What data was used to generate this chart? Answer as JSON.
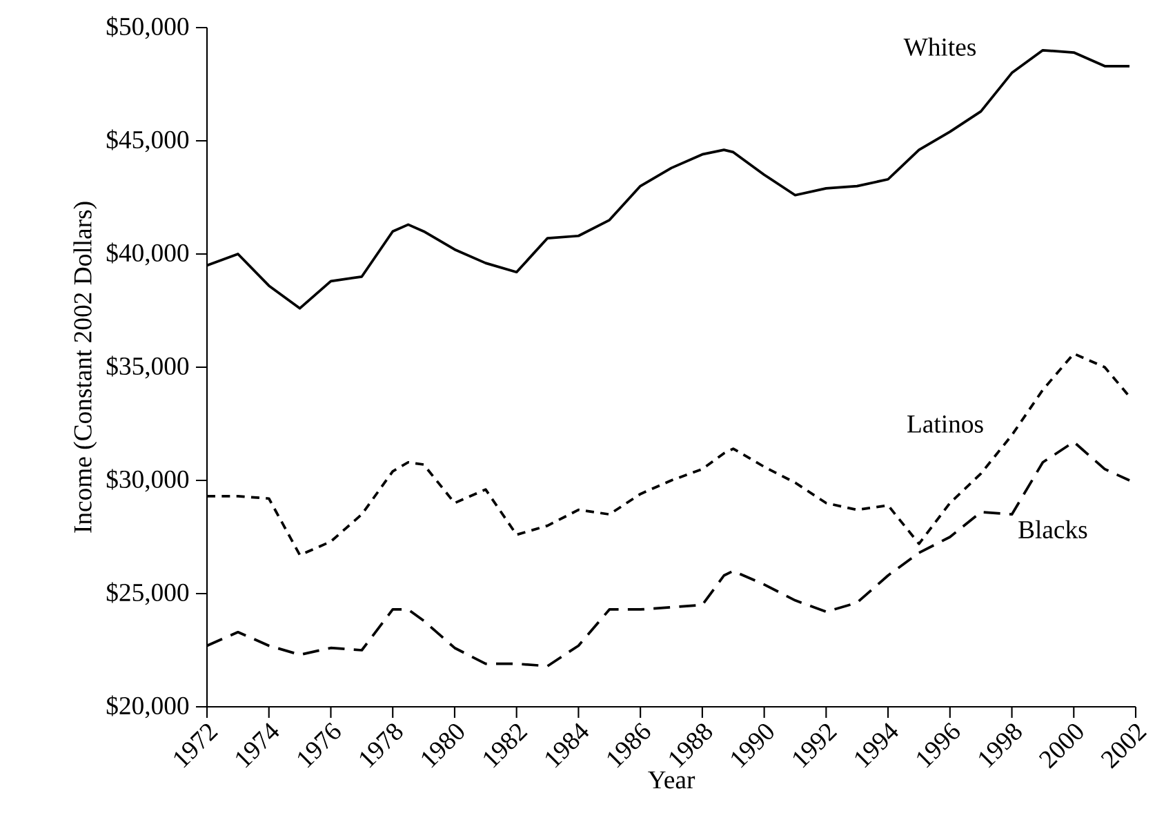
{
  "chart_data": {
    "type": "line",
    "xlabel": "Year",
    "ylabel": "Income (Constant 2002 Dollars)",
    "x": [
      1972,
      1973,
      1974,
      1975,
      1976,
      1977,
      1978,
      1978.5,
      1979,
      1980,
      1981,
      1982,
      1983,
      1984,
      1985,
      1986,
      1987,
      1988,
      1988.7,
      1989,
      1990,
      1991,
      1992,
      1993,
      1994,
      1995,
      1996,
      1997,
      1998,
      1999,
      2000,
      2001,
      2001.8
    ],
    "series": [
      {
        "name": "Whites",
        "color": "#000000",
        "line_style": "solid",
        "values": [
          39500,
          40000,
          38600,
          37600,
          38800,
          39000,
          41000,
          41300,
          41000,
          40200,
          39600,
          39200,
          40700,
          40800,
          41500,
          43000,
          43800,
          44400,
          44600,
          44500,
          43500,
          42600,
          42900,
          43000,
          43300,
          44600,
          45400,
          46300,
          48000,
          49000,
          48900,
          48300,
          48300
        ]
      },
      {
        "name": "Latinos",
        "color": "#000000",
        "line_style": "dotted",
        "values": [
          29300,
          29300,
          29200,
          26700,
          27300,
          28500,
          30400,
          30800,
          30700,
          29000,
          29600,
          27600,
          28000,
          28700,
          28500,
          29400,
          30000,
          30500,
          31200,
          31400,
          30600,
          29900,
          29000,
          28700,
          28900,
          27200,
          29000,
          30300,
          32000,
          34000,
          35600,
          35000,
          33700
        ]
      },
      {
        "name": "Blacks",
        "color": "#000000",
        "line_style": "dashed",
        "values": [
          22700,
          23300,
          22700,
          22300,
          22600,
          22500,
          24300,
          24300,
          23800,
          22600,
          21900,
          21900,
          21800,
          22700,
          24300,
          24300,
          24400,
          24500,
          25800,
          26000,
          25400,
          24700,
          24200,
          24600,
          25800,
          26800,
          27500,
          28600,
          28500,
          30800,
          31700,
          30500,
          30000
        ]
      }
    ],
    "xlim": [
      1972,
      2002
    ],
    "ylim": [
      20000,
      50000
    ],
    "xticks": [
      1972,
      1974,
      1976,
      1978,
      1980,
      1982,
      1984,
      1986,
      1988,
      1990,
      1992,
      1994,
      1996,
      1998,
      2000,
      2002
    ],
    "yticks": [
      {
        "value": 20000,
        "label": "$20,000"
      },
      {
        "value": 25000,
        "label": "$25,000"
      },
      {
        "value": 30000,
        "label": "$30,000"
      },
      {
        "value": 35000,
        "label": "$35,000"
      },
      {
        "value": 40000,
        "label": "$40,000"
      },
      {
        "value": 45000,
        "label": "$45,000"
      },
      {
        "value": 50000,
        "label": "$50,000"
      }
    ],
    "grid": false,
    "legend": false,
    "marker": "none"
  }
}
